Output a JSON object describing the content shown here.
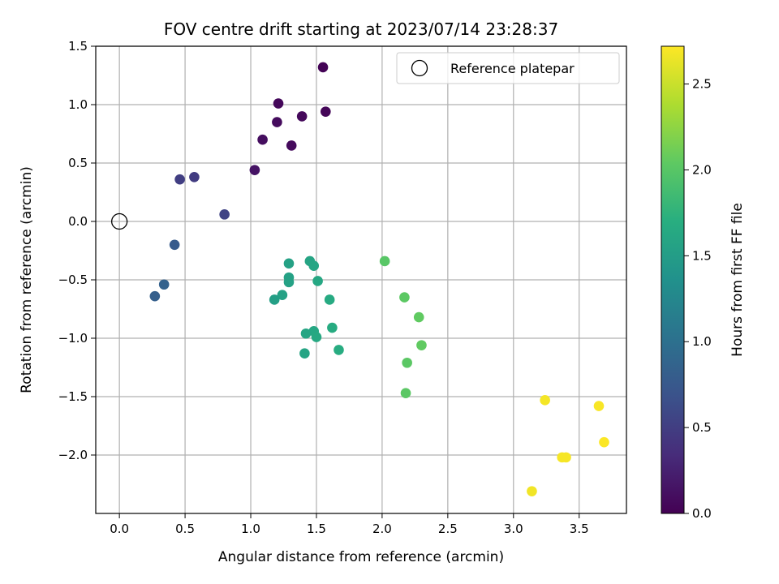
{
  "chart_data": {
    "type": "scatter",
    "title": "FOV centre drift starting at 2023/07/14 23:28:37",
    "xlabel": "Angular distance from reference (arcmin)",
    "ylabel": "Rotation from reference (arcmin)",
    "xlim": [
      -0.18,
      3.86
    ],
    "ylim": [
      -2.5,
      1.5
    ],
    "xticks": [
      0.0,
      0.5,
      1.0,
      1.5,
      2.0,
      2.5,
      3.0,
      3.5
    ],
    "xtick_labels": [
      "0.0",
      "0.5",
      "1.0",
      "1.5",
      "2.0",
      "2.5",
      "3.0",
      "3.5"
    ],
    "yticks": [
      1.5,
      1.0,
      0.5,
      0.0,
      -0.5,
      -1.0,
      -1.5,
      -2.0
    ],
    "ytick_labels": [
      "1.5",
      "1.0",
      "0.5",
      "0.0",
      "−0.5",
      "−1.0",
      "−1.5",
      "−2.0"
    ],
    "grid": true,
    "legend": {
      "position": "top-right",
      "label": "Reference platepar"
    },
    "reference_point": {
      "x": 0.0,
      "y": 0.0
    },
    "colorbar": {
      "label": "Hours from first FF file",
      "range": [
        0.0,
        2.72
      ],
      "ticks": [
        0.0,
        0.5,
        1.0,
        1.5,
        2.0,
        2.5
      ],
      "tick_labels": [
        "0.0",
        "0.5",
        "1.0",
        "1.5",
        "2.0",
        "2.5"
      ],
      "colormap": "viridis"
    },
    "points": [
      {
        "x": 1.55,
        "y": 1.32,
        "hours": 0.02
      },
      {
        "x": 1.21,
        "y": 1.01,
        "hours": 0.05
      },
      {
        "x": 1.57,
        "y": 0.94,
        "hours": 0.04
      },
      {
        "x": 1.39,
        "y": 0.9,
        "hours": 0.06
      },
      {
        "x": 1.2,
        "y": 0.85,
        "hours": 0.08
      },
      {
        "x": 1.09,
        "y": 0.7,
        "hours": 0.1
      },
      {
        "x": 1.31,
        "y": 0.65,
        "hours": 0.07
      },
      {
        "x": 1.03,
        "y": 0.44,
        "hours": 0.14
      },
      {
        "x": 0.46,
        "y": 0.36,
        "hours": 0.5
      },
      {
        "x": 0.57,
        "y": 0.38,
        "hours": 0.48
      },
      {
        "x": 0.8,
        "y": 0.06,
        "hours": 0.55
      },
      {
        "x": 0.42,
        "y": -0.2,
        "hours": 0.78
      },
      {
        "x": 0.34,
        "y": -0.54,
        "hours": 0.85
      },
      {
        "x": 0.27,
        "y": -0.64,
        "hours": 0.82
      },
      {
        "x": 1.29,
        "y": -0.36,
        "hours": 1.55
      },
      {
        "x": 1.45,
        "y": -0.34,
        "hours": 1.58
      },
      {
        "x": 1.48,
        "y": -0.38,
        "hours": 1.6
      },
      {
        "x": 1.29,
        "y": -0.48,
        "hours": 1.55
      },
      {
        "x": 1.29,
        "y": -0.52,
        "hours": 1.55
      },
      {
        "x": 1.51,
        "y": -0.51,
        "hours": 1.62
      },
      {
        "x": 1.24,
        "y": -0.63,
        "hours": 1.55
      },
      {
        "x": 1.18,
        "y": -0.67,
        "hours": 1.52
      },
      {
        "x": 1.6,
        "y": -0.67,
        "hours": 1.65
      },
      {
        "x": 1.62,
        "y": -0.91,
        "hours": 1.67
      },
      {
        "x": 1.48,
        "y": -0.94,
        "hours": 1.62
      },
      {
        "x": 1.42,
        "y": -0.96,
        "hours": 1.6
      },
      {
        "x": 1.5,
        "y": -0.99,
        "hours": 1.63
      },
      {
        "x": 1.67,
        "y": -1.1,
        "hours": 1.68
      },
      {
        "x": 1.41,
        "y": -1.13,
        "hours": 1.58
      },
      {
        "x": 2.02,
        "y": -0.34,
        "hours": 2.0
      },
      {
        "x": 2.17,
        "y": -0.65,
        "hours": 2.03
      },
      {
        "x": 2.28,
        "y": -0.82,
        "hours": 2.05
      },
      {
        "x": 2.3,
        "y": -1.06,
        "hours": 2.05
      },
      {
        "x": 2.19,
        "y": -1.21,
        "hours": 2.02
      },
      {
        "x": 2.18,
        "y": -1.47,
        "hours": 2.02
      },
      {
        "x": 3.24,
        "y": -1.53,
        "hours": 2.68
      },
      {
        "x": 3.65,
        "y": -1.58,
        "hours": 2.7
      },
      {
        "x": 3.69,
        "y": -1.89,
        "hours": 2.71
      },
      {
        "x": 3.37,
        "y": -2.02,
        "hours": 2.69
      },
      {
        "x": 3.4,
        "y": -2.02,
        "hours": 2.69
      },
      {
        "x": 3.14,
        "y": -2.31,
        "hours": 2.67
      }
    ]
  }
}
